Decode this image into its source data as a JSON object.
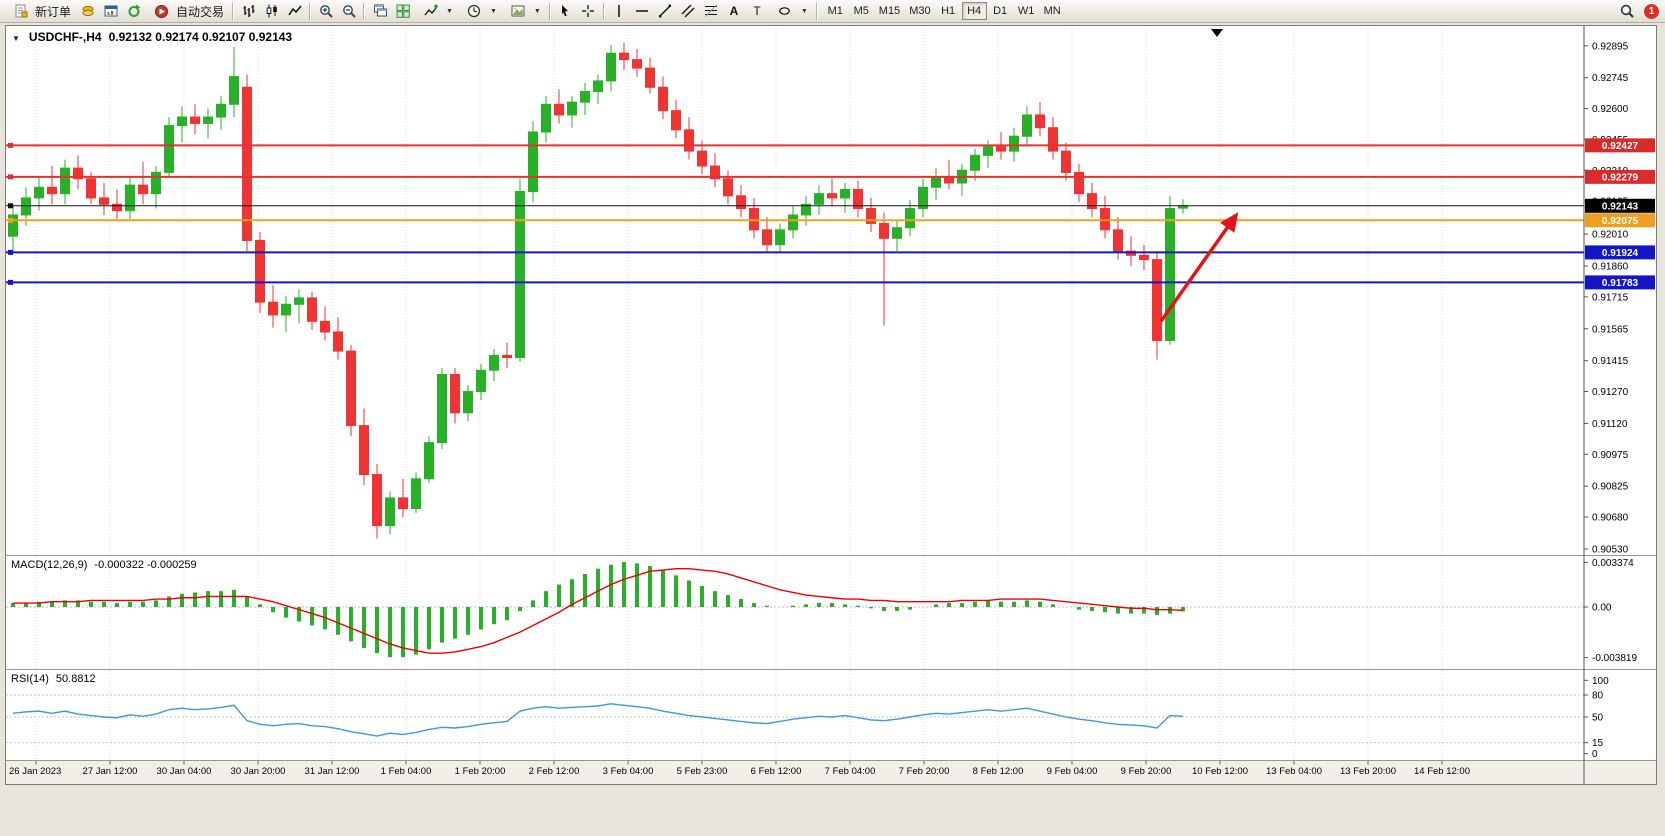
{
  "toolbar": {
    "new_order_label": "新订单",
    "auto_trading_label": "自动交易",
    "timeframes": [
      "M1",
      "M5",
      "M15",
      "M30",
      "H1",
      "H4",
      "D1",
      "W1",
      "MN"
    ],
    "active_timeframe": "H4",
    "notification_count": "1",
    "icon_names": [
      "new-order",
      "coins",
      "chart-window",
      "refresh",
      "auto-trading",
      "bar-chart",
      "candlestick-chart",
      "line-chart",
      "zoom-in",
      "zoom-out",
      "cascade-windows",
      "tile-windows",
      "indicators",
      "periods",
      "templates",
      "cursor",
      "crosshair",
      "vertical-line",
      "horizontal-line",
      "trendline",
      "channel",
      "fibonacci",
      "text",
      "label",
      "shapes",
      "search"
    ]
  },
  "chart": {
    "expander_icon": "▼",
    "symbol_title": "USDCHF-,H4",
    "ohlc_text": "0.92132 0.92174 0.92107 0.92143"
  },
  "chart_data": {
    "type": "candlestick",
    "symbol": "USDCHF-",
    "timeframe": "H4",
    "ohlc_display": {
      "open": "0.92132",
      "high": "0.92174",
      "low": "0.92107",
      "close": "0.92143"
    },
    "up_color": "#28b028",
    "down_color": "#f03333",
    "x_labels": [
      "26 Jan 2023",
      "27 Jan 12:00",
      "30 Jan 04:00",
      "30 Jan 20:00",
      "31 Jan 12:00",
      "1 Feb 04:00",
      "1 Feb 20:00",
      "2 Feb 12:00",
      "3 Feb 04:00",
      "5 Feb 23:00",
      "6 Feb 12:00",
      "7 Feb 04:00",
      "7 Feb 20:00",
      "8 Feb 12:00",
      "9 Feb 04:00",
      "9 Feb 20:00",
      "10 Feb 12:00",
      "13 Feb 04:00",
      "13 Feb 20:00",
      "14 Feb 12:00"
    ],
    "price_ticks": [
      "0.92895",
      "0.92745",
      "0.92600",
      "0.92455",
      "0.92310",
      "0.92165",
      "0.92010",
      "0.91860",
      "0.91715",
      "0.91565",
      "0.91415",
      "0.91270",
      "0.91120",
      "0.90975",
      "0.90825",
      "0.90680",
      "0.90530"
    ],
    "candles": [
      [
        0.92,
        0.9215,
        0.9193,
        0.921
      ],
      [
        0.921,
        0.9223,
        0.9205,
        0.9218
      ],
      [
        0.9218,
        0.9228,
        0.9212,
        0.9223
      ],
      [
        0.9223,
        0.9233,
        0.9215,
        0.922
      ],
      [
        0.922,
        0.9236,
        0.9215,
        0.9232
      ],
      [
        0.9232,
        0.9238,
        0.9222,
        0.9227
      ],
      [
        0.9227,
        0.923,
        0.9215,
        0.9218
      ],
      [
        0.9218,
        0.9225,
        0.921,
        0.9215
      ],
      [
        0.9215,
        0.9222,
        0.9208,
        0.9212
      ],
      [
        0.9212,
        0.9228,
        0.9208,
        0.9224
      ],
      [
        0.9224,
        0.9235,
        0.9215,
        0.922
      ],
      [
        0.922,
        0.9233,
        0.9213,
        0.923
      ],
      [
        0.923,
        0.9256,
        0.9228,
        0.9252
      ],
      [
        0.9252,
        0.9261,
        0.9244,
        0.9256
      ],
      [
        0.9256,
        0.9262,
        0.9248,
        0.9253
      ],
      [
        0.9253,
        0.926,
        0.9246,
        0.9256
      ],
      [
        0.9256,
        0.9266,
        0.925,
        0.9262
      ],
      [
        0.9262,
        0.9289,
        0.9256,
        0.9275
      ],
      [
        0.927,
        0.9276,
        0.9193,
        0.9198
      ],
      [
        0.9198,
        0.9202,
        0.9164,
        0.9169
      ],
      [
        0.9169,
        0.9177,
        0.9157,
        0.9163
      ],
      [
        0.9163,
        0.9172,
        0.9155,
        0.9168
      ],
      [
        0.9168,
        0.9175,
        0.9159,
        0.9171
      ],
      [
        0.9171,
        0.9174,
        0.9156,
        0.916
      ],
      [
        0.916,
        0.9167,
        0.9151,
        0.9155
      ],
      [
        0.9155,
        0.9162,
        0.9142,
        0.9146
      ],
      [
        0.9146,
        0.9149,
        0.9106,
        0.9111
      ],
      [
        0.9111,
        0.9119,
        0.9083,
        0.9088
      ],
      [
        0.9088,
        0.9093,
        0.9058,
        0.9064
      ],
      [
        0.9064,
        0.908,
        0.906,
        0.9077
      ],
      [
        0.9077,
        0.9086,
        0.9068,
        0.9072
      ],
      [
        0.9072,
        0.9089,
        0.907,
        0.9086
      ],
      [
        0.9086,
        0.9106,
        0.9084,
        0.9103
      ],
      [
        0.9103,
        0.9138,
        0.91,
        0.9135
      ],
      [
        0.9135,
        0.9138,
        0.9112,
        0.9117
      ],
      [
        0.9117,
        0.913,
        0.9113,
        0.9127
      ],
      [
        0.9127,
        0.914,
        0.9123,
        0.9137
      ],
      [
        0.9137,
        0.9147,
        0.9132,
        0.9144
      ],
      [
        0.9144,
        0.915,
        0.9138,
        0.9143
      ],
      [
        0.9143,
        0.9227,
        0.9141,
        0.9221
      ],
      [
        0.9221,
        0.9254,
        0.9216,
        0.9249
      ],
      [
        0.9249,
        0.9266,
        0.9244,
        0.9262
      ],
      [
        0.9262,
        0.9269,
        0.9253,
        0.9257
      ],
      [
        0.9257,
        0.9266,
        0.9251,
        0.9263
      ],
      [
        0.9263,
        0.9272,
        0.9257,
        0.9268
      ],
      [
        0.9268,
        0.9276,
        0.9262,
        0.9273
      ],
      [
        0.9273,
        0.929,
        0.9268,
        0.9286
      ],
      [
        0.9286,
        0.9291,
        0.9278,
        0.9283
      ],
      [
        0.9283,
        0.9288,
        0.9275,
        0.9279
      ],
      [
        0.9279,
        0.9284,
        0.9267,
        0.927
      ],
      [
        0.927,
        0.9275,
        0.9255,
        0.9259
      ],
      [
        0.9259,
        0.9264,
        0.9246,
        0.925
      ],
      [
        0.925,
        0.9256,
        0.9236,
        0.924
      ],
      [
        0.924,
        0.9245,
        0.9229,
        0.9233
      ],
      [
        0.9233,
        0.9239,
        0.9223,
        0.9227
      ],
      [
        0.9227,
        0.9231,
        0.9215,
        0.9219
      ],
      [
        0.9219,
        0.9224,
        0.9209,
        0.9213
      ],
      [
        0.9213,
        0.9218,
        0.9199,
        0.9203
      ],
      [
        0.9203,
        0.9209,
        0.9192,
        0.9196
      ],
      [
        0.9196,
        0.9206,
        0.9193,
        0.9203
      ],
      [
        0.9203,
        0.9214,
        0.9199,
        0.921
      ],
      [
        0.921,
        0.9219,
        0.9205,
        0.9215
      ],
      [
        0.9215,
        0.9224,
        0.921,
        0.922
      ],
      [
        0.922,
        0.9227,
        0.9214,
        0.9218
      ],
      [
        0.9218,
        0.9225,
        0.9211,
        0.9222
      ],
      [
        0.9222,
        0.9226,
        0.9209,
        0.9213
      ],
      [
        0.9213,
        0.9218,
        0.9202,
        0.9206
      ],
      [
        0.9206,
        0.9211,
        0.9158,
        0.9199
      ],
      [
        0.9199,
        0.9208,
        0.9193,
        0.9204
      ],
      [
        0.9204,
        0.9217,
        0.92,
        0.9213
      ],
      [
        0.9213,
        0.9227,
        0.9209,
        0.9223
      ],
      [
        0.9223,
        0.9232,
        0.9217,
        0.9228
      ],
      [
        0.9228,
        0.9236,
        0.9222,
        0.9225
      ],
      [
        0.9225,
        0.9234,
        0.9219,
        0.9231
      ],
      [
        0.9231,
        0.9241,
        0.9226,
        0.9238
      ],
      [
        0.9238,
        0.9245,
        0.9232,
        0.9242
      ],
      [
        0.9242,
        0.9249,
        0.9236,
        0.924
      ],
      [
        0.924,
        0.9251,
        0.9235,
        0.9247
      ],
      [
        0.9247,
        0.9261,
        0.9243,
        0.9257
      ],
      [
        0.9257,
        0.9263,
        0.9247,
        0.9251
      ],
      [
        0.9251,
        0.9256,
        0.9236,
        0.924
      ],
      [
        0.924,
        0.9244,
        0.9226,
        0.923
      ],
      [
        0.923,
        0.9234,
        0.9216,
        0.922
      ],
      [
        0.922,
        0.9225,
        0.9209,
        0.9213
      ],
      [
        0.9213,
        0.9219,
        0.9199,
        0.9203
      ],
      [
        0.9203,
        0.9209,
        0.9189,
        0.9193
      ],
      [
        0.9193,
        0.92,
        0.9186,
        0.9191
      ],
      [
        0.9191,
        0.9196,
        0.9184,
        0.9189
      ],
      [
        0.9189,
        0.9193,
        0.9142,
        0.9151
      ],
      [
        0.9151,
        0.9219,
        0.9149,
        0.9213
      ],
      [
        0.92132,
        0.92174,
        0.92107,
        0.92143
      ]
    ],
    "hlines": [
      {
        "price": 0.92427,
        "label": "0.92427",
        "color": "#e53030",
        "label_bg": "#d92b2b",
        "width": 2
      },
      {
        "price": 0.92279,
        "label": "0.92279",
        "color": "#e53030",
        "label_bg": "#d92b2b",
        "width": 2
      },
      {
        "price": 0.92143,
        "label": "0.92143",
        "color": "#111111",
        "label_bg": "#000000",
        "width": 1
      },
      {
        "price": 0.92075,
        "label": "0.92075",
        "color": "#f2a11c",
        "label_bg": "#ef9f1f",
        "width": 2
      },
      {
        "price": 0.91924,
        "label": "0.91924",
        "color": "#1515cc",
        "label_bg": "#1515c8",
        "width": 2
      },
      {
        "price": 0.91783,
        "label": "0.91783",
        "color": "#1515cc",
        "label_bg": "#1515c8",
        "width": 2
      }
    ],
    "arrow": {
      "from_i": 88.3,
      "from_price": 0.916,
      "to_i": 94.1,
      "to_price": 0.921,
      "color": "#e01616"
    },
    "macd": {
      "label": "MACD(12,26,9)",
      "values_text": "-0.000322 -0.000259",
      "ticks": [
        "0.003374",
        "0.00",
        "-0.003819"
      ],
      "hist_color": "#28b028",
      "signal_color": "#f00000",
      "histogram": [
        0.0003,
        0.0003,
        0.0004,
        0.0004,
        0.0005,
        0.0005,
        0.0004,
        0.0004,
        0.0003,
        0.0004,
        0.0004,
        0.0005,
        0.0008,
        0.001,
        0.0011,
        0.0012,
        0.0012,
        0.0013,
        0.0008,
        0.0002,
        -0.0004,
        -0.0008,
        -0.0011,
        -0.0014,
        -0.0017,
        -0.0021,
        -0.0026,
        -0.0031,
        -0.0035,
        -0.0038,
        -0.0038,
        -0.0036,
        -0.0032,
        -0.0027,
        -0.0024,
        -0.0021,
        -0.0017,
        -0.0013,
        -0.001,
        -0.0003,
        0.0005,
        0.0012,
        0.0017,
        0.0021,
        0.0025,
        0.0029,
        0.0032,
        0.0034,
        0.0033,
        0.0031,
        0.0028,
        0.0024,
        0.002,
        0.0016,
        0.0012,
        0.0009,
        0.0006,
        0.0003,
        0.0001,
        0.0,
        0.0001,
        0.0002,
        0.0003,
        0.0003,
        0.0002,
        0.0001,
        -0.0001,
        -0.0003,
        -0.0003,
        -0.0002,
        0.0,
        0.0002,
        0.0003,
        0.0003,
        0.0004,
        0.0005,
        0.0004,
        0.0004,
        0.0005,
        0.0004,
        0.0002,
        0.0,
        -0.0002,
        -0.0003,
        -0.0004,
        -0.0005,
        -0.0005,
        -0.0005,
        -0.0006,
        -0.0005,
        -0.000322
      ],
      "signal": [
        0.0003,
        0.0003,
        0.0003,
        0.0004,
        0.0004,
        0.0004,
        0.0005,
        0.0005,
        0.0005,
        0.0005,
        0.0005,
        0.0006,
        0.0006,
        0.0007,
        0.0007,
        0.0008,
        0.0008,
        0.0008,
        0.0008,
        0.0006,
        0.0004,
        0.0001,
        -0.0002,
        -0.0005,
        -0.0008,
        -0.0012,
        -0.0016,
        -0.002,
        -0.0024,
        -0.0028,
        -0.0031,
        -0.0033,
        -0.0035,
        -0.0035,
        -0.0034,
        -0.0032,
        -0.003,
        -0.0027,
        -0.0023,
        -0.0019,
        -0.0014,
        -0.0009,
        -0.0004,
        0.0002,
        0.0007,
        0.0012,
        0.0017,
        0.0021,
        0.0024,
        0.0027,
        0.0028,
        0.0029,
        0.0029,
        0.0028,
        0.0027,
        0.0025,
        0.0022,
        0.0019,
        0.0016,
        0.0013,
        0.0011,
        0.0009,
        0.0008,
        0.0007,
        0.0006,
        0.0006,
        0.0005,
        0.0005,
        0.0004,
        0.0004,
        0.0004,
        0.0004,
        0.0004,
        0.0005,
        0.0005,
        0.0005,
        0.0006,
        0.0006,
        0.0006,
        0.0006,
        0.0005,
        0.0004,
        0.0003,
        0.0002,
        0.0001,
        0.0,
        -0.0001,
        -0.0001,
        -0.0002,
        -0.0002,
        -0.000259
      ]
    },
    "rsi": {
      "label": "RSI(14)",
      "value_text": "50.8812",
      "ticks": [
        "100",
        "80",
        "50",
        "15",
        "0"
      ],
      "levels": [
        80,
        50,
        15
      ],
      "color": "#3c99e0",
      "values": [
        55,
        57,
        58,
        55,
        58,
        54,
        52,
        50,
        49,
        53,
        51,
        54,
        60,
        62,
        60,
        61,
        63,
        66,
        45,
        40,
        38,
        40,
        41,
        38,
        37,
        34,
        30,
        27,
        24,
        28,
        26,
        29,
        33,
        36,
        35,
        37,
        40,
        42,
        44,
        58,
        62,
        64,
        62,
        63,
        64,
        65,
        68,
        66,
        64,
        62,
        58,
        55,
        52,
        50,
        48,
        46,
        44,
        42,
        41,
        44,
        47,
        49,
        51,
        50,
        52,
        49,
        46,
        45,
        47,
        50,
        53,
        55,
        54,
        56,
        58,
        60,
        58,
        60,
        62,
        58,
        54,
        50,
        47,
        45,
        42,
        40,
        39,
        38,
        35,
        52,
        50.8812
      ]
    }
  }
}
